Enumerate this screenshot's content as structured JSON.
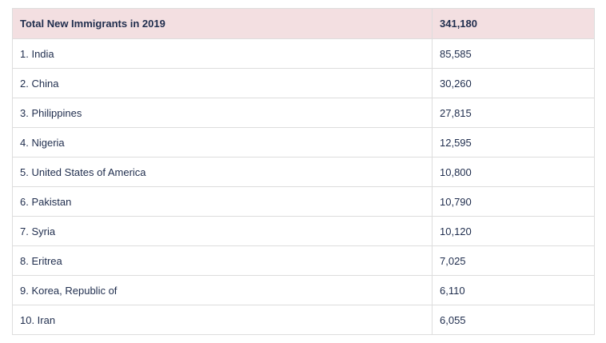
{
  "table": {
    "header": [
      "Total New Immigrants in 2019",
      "341,180"
    ],
    "rows": [
      [
        "1. India",
        "85,585"
      ],
      [
        "2. China",
        "30,260"
      ],
      [
        "3. Philippines",
        "27,815"
      ],
      [
        "4. Nigeria",
        "12,595"
      ],
      [
        "5. United States of America",
        "10,800"
      ],
      [
        "6. Pakistan",
        "10,790"
      ],
      [
        "7. Syria",
        "10,120"
      ],
      [
        "8. Eritrea",
        "7,025"
      ],
      [
        "9. Korea, Republic of",
        "6,110"
      ],
      [
        "10. Iran",
        "6,055"
      ]
    ]
  }
}
